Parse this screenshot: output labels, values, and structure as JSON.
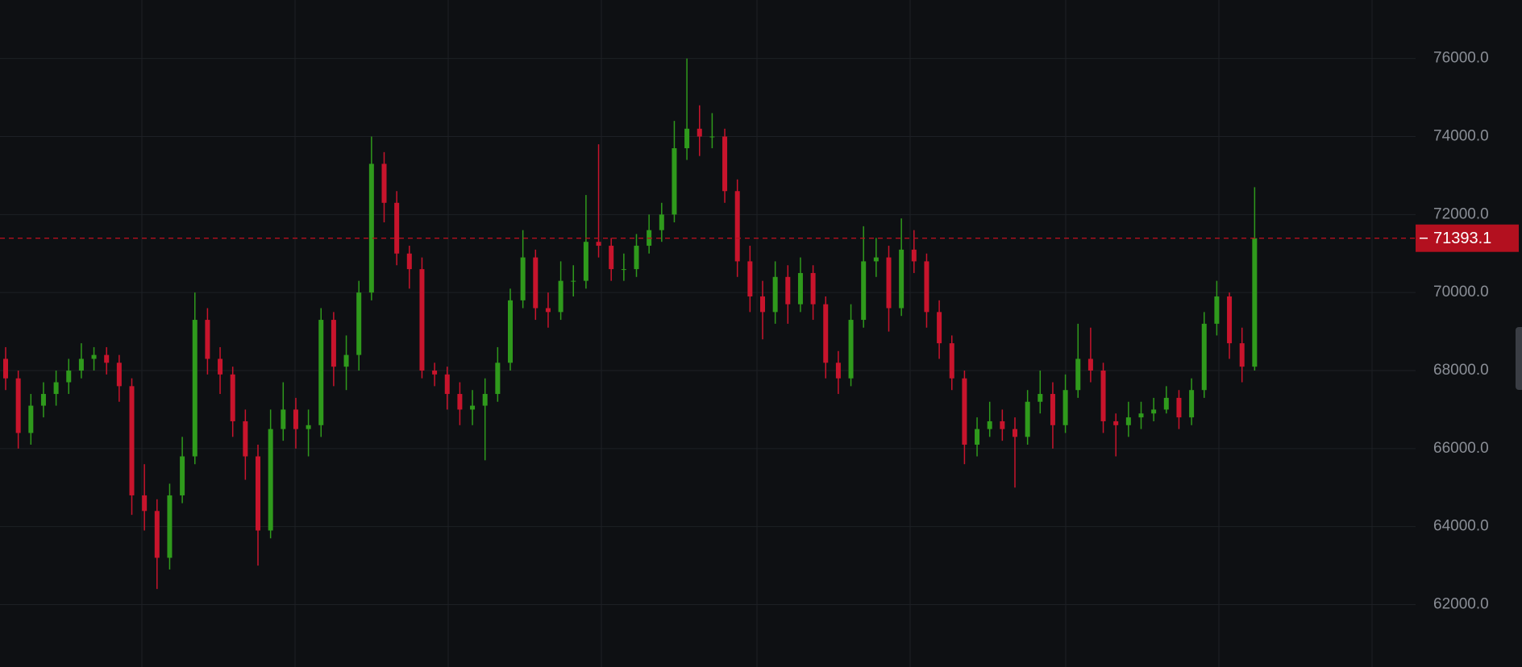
{
  "chart_data": {
    "type": "candlestick",
    "categories": [
      null,
      null,
      null,
      null,
      null,
      null,
      null,
      null,
      null,
      null,
      null,
      null,
      null,
      null,
      null,
      null,
      null,
      null,
      null,
      null,
      null,
      null,
      null,
      null,
      null,
      null,
      null,
      null,
      null,
      null,
      null,
      null,
      null,
      null,
      null,
      null,
      null,
      null,
      null,
      null,
      null,
      null,
      null,
      null,
      null,
      null,
      null,
      null,
      null,
      null,
      null,
      null,
      null,
      null,
      null,
      null,
      null,
      null,
      null,
      null,
      null,
      null,
      null,
      null,
      null,
      null,
      null,
      null,
      null,
      null,
      null,
      null,
      null,
      null,
      null,
      null,
      null,
      null,
      null,
      null,
      null,
      null,
      null,
      null,
      null,
      null,
      null,
      null,
      null,
      null,
      null,
      null,
      null,
      null,
      null,
      null,
      null,
      null,
      null,
      null
    ],
    "open": [
      68300,
      67800,
      66400,
      67100,
      67400,
      67700,
      68000,
      68300,
      68400,
      68200,
      67600,
      64800,
      64400,
      63200,
      64800,
      65800,
      69300,
      68300,
      67900,
      66700,
      65800,
      63900,
      66500,
      67000,
      66500,
      66600,
      69300,
      68100,
      68400,
      70000,
      73300,
      72300,
      71000,
      70600,
      68000,
      67900,
      67400,
      67000,
      67100,
      67400,
      68200,
      69800,
      70900,
      69600,
      69500,
      70300,
      70300,
      71300,
      71200,
      70600,
      70600,
      71200,
      71600,
      72000,
      73700,
      74200,
      74000,
      74000,
      72600,
      70800,
      69900,
      69500,
      70400,
      69700,
      70500,
      69700,
      68200,
      67800,
      69300,
      70800,
      70900,
      69600,
      71100,
      70800,
      69500,
      68700,
      67800,
      66100,
      66500,
      66700,
      66500,
      66300,
      67200,
      67400,
      66600,
      67500,
      68300,
      68000,
      66700,
      66600,
      66800,
      66900,
      67000,
      67300,
      66800,
      67500,
      69200,
      69900,
      68700,
      68100
    ],
    "high": [
      68600,
      68000,
      67400,
      67700,
      68000,
      68300,
      68700,
      68600,
      68600,
      68400,
      67800,
      65600,
      64700,
      65100,
      66300,
      70000,
      69600,
      68600,
      68100,
      67000,
      66100,
      67000,
      67700,
      67300,
      67000,
      69600,
      69500,
      68900,
      70300,
      74000,
      73600,
      72600,
      71200,
      70900,
      68200,
      68100,
      67700,
      67500,
      67800,
      68600,
      70100,
      71600,
      71100,
      70000,
      70800,
      70700,
      72500,
      73800,
      71400,
      71000,
      71500,
      72000,
      72300,
      74400,
      76000,
      74800,
      74600,
      74200,
      72900,
      71200,
      70300,
      70800,
      70700,
      70900,
      70700,
      69900,
      68500,
      69700,
      71700,
      71400,
      71200,
      71900,
      71600,
      71000,
      69800,
      68900,
      68000,
      66800,
      67200,
      67000,
      66800,
      67500,
      68000,
      67700,
      67900,
      69200,
      69100,
      68200,
      66900,
      67200,
      67200,
      67300,
      67600,
      67500,
      67800,
      69500,
      70300,
      70000,
      69100,
      72700
    ],
    "low": [
      67500,
      66000,
      66100,
      66800,
      67100,
      67400,
      67800,
      68000,
      67900,
      67200,
      64300,
      63900,
      62400,
      62900,
      64600,
      65600,
      67900,
      67400,
      66300,
      65200,
      63000,
      63700,
      66200,
      66000,
      65800,
      66300,
      67600,
      67500,
      68000,
      69800,
      71800,
      70700,
      70100,
      67800,
      67600,
      67000,
      66600,
      66600,
      65700,
      67200,
      68000,
      69600,
      69300,
      69100,
      69300,
      69900,
      70100,
      70900,
      70300,
      70300,
      70400,
      71000,
      71300,
      71800,
      73400,
      73500,
      73700,
      72300,
      70400,
      69500,
      68800,
      69200,
      69200,
      69500,
      69300,
      67800,
      67400,
      67600,
      69100,
      70400,
      69000,
      69400,
      70500,
      69100,
      68300,
      67500,
      65600,
      65800,
      66300,
      66200,
      65000,
      66100,
      66900,
      66000,
      66400,
      67300,
      67700,
      66400,
      65800,
      66300,
      66500,
      66700,
      66900,
      66500,
      66600,
      67300,
      68900,
      68300,
      67700,
      68000
    ],
    "close": [
      67800,
      66400,
      67100,
      67400,
      67700,
      68000,
      68300,
      68400,
      68200,
      67600,
      64800,
      64400,
      63200,
      64800,
      65800,
      69300,
      68300,
      67900,
      66700,
      65800,
      63900,
      66500,
      67000,
      66500,
      66600,
      69300,
      68100,
      68400,
      70000,
      73300,
      72300,
      71000,
      70600,
      68000,
      67900,
      67400,
      67000,
      67100,
      67400,
      68200,
      69800,
      70900,
      69600,
      69500,
      70300,
      70300,
      71300,
      71200,
      70600,
      70600,
      71200,
      71600,
      72000,
      73700,
      74200,
      74000,
      74000,
      72600,
      70800,
      69900,
      69500,
      70400,
      69700,
      70500,
      69700,
      68200,
      67800,
      69300,
      70800,
      70900,
      69600,
      71100,
      70800,
      69500,
      68700,
      67800,
      66100,
      66500,
      66700,
      66500,
      66300,
      67200,
      67400,
      66600,
      67500,
      68300,
      68000,
      66700,
      66600,
      66800,
      66900,
      67000,
      67300,
      66800,
      67500,
      69200,
      69900,
      68700,
      68100,
      71393.1
    ],
    "up_color": "#2f9a1c",
    "down_color": "#c8142c",
    "ylim": [
      60400,
      77500
    ],
    "yticks": [
      {
        "value": 62000,
        "label": "62000.0"
      },
      {
        "value": 64000,
        "label": "64000.0"
      },
      {
        "value": 66000,
        "label": "66000.0"
      },
      {
        "value": 68000,
        "label": "68000.0"
      },
      {
        "value": 70000,
        "label": "70000.0"
      },
      {
        "value": 72000,
        "label": "72000.0"
      },
      {
        "value": 74000,
        "label": "74000.0"
      },
      {
        "value": 76000,
        "label": "76000.0"
      }
    ],
    "grid": true,
    "last_price": 71393.1,
    "last_price_color": "#b3101f"
  }
}
